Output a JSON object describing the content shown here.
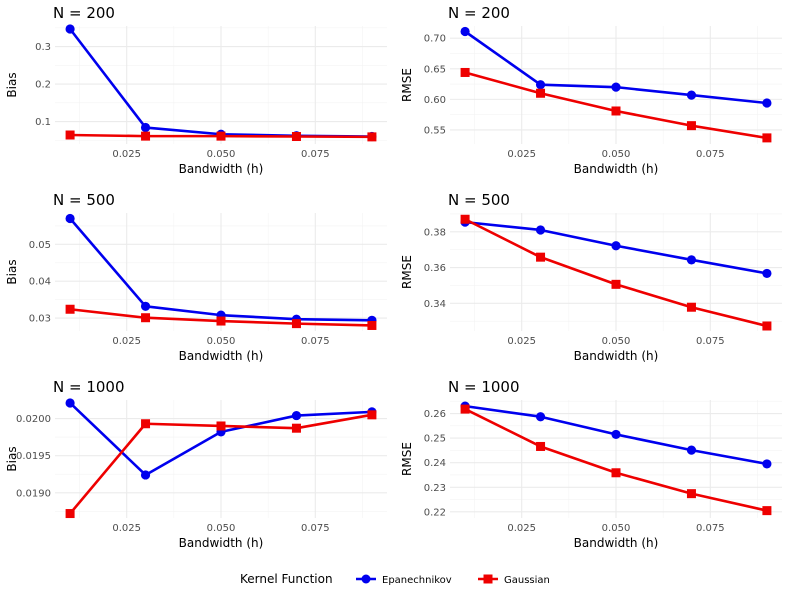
{
  "legend": {
    "title": "Kernel Function",
    "items": [
      {
        "label": "Epanechnikov",
        "color": "#0000ee",
        "marker": "circle"
      },
      {
        "label": "Gaussian",
        "color": "#ee0000",
        "marker": "square"
      }
    ]
  },
  "chart_data": [
    {
      "type": "line",
      "title": "N = 200",
      "xlabel": "Bandwidth (h)",
      "ylabel": "Bias",
      "x": [
        0.01,
        0.03,
        0.05,
        0.07,
        0.09
      ],
      "xlim": [
        0.006,
        0.094
      ],
      "ylim": [
        0.04,
        0.355
      ],
      "xticks": [
        0.025,
        0.05,
        0.075
      ],
      "xtick_labels": [
        "0.025",
        "0.050",
        "0.075"
      ],
      "yticks": [
        0.1,
        0.2,
        0.3
      ],
      "ytick_labels": [
        "0.1",
        "0.2",
        "0.3"
      ],
      "series": [
        {
          "name": "Epanechnikov",
          "values": [
            0.347,
            0.084,
            0.066,
            0.062,
            0.06
          ]
        },
        {
          "name": "Gaussian",
          "values": [
            0.064,
            0.061,
            0.061,
            0.06,
            0.059
          ]
        }
      ]
    },
    {
      "type": "line",
      "title": "N = 200",
      "xlabel": "Bandwidth (h)",
      "ylabel": "RMSE",
      "x": [
        0.01,
        0.03,
        0.05,
        0.07,
        0.09
      ],
      "xlim": [
        0.006,
        0.094
      ],
      "ylim": [
        0.527,
        0.72
      ],
      "xticks": [
        0.025,
        0.05,
        0.075
      ],
      "xtick_labels": [
        "0.025",
        "0.050",
        "0.075"
      ],
      "yticks": [
        0.55,
        0.6,
        0.65,
        0.7
      ],
      "ytick_labels": [
        "0.55",
        "0.60",
        "0.65",
        "0.70"
      ],
      "series": [
        {
          "name": "Epanechnikov",
          "values": [
            0.711,
            0.624,
            0.62,
            0.607,
            0.594
          ]
        },
        {
          "name": "Gaussian",
          "values": [
            0.644,
            0.61,
            0.581,
            0.557,
            0.537
          ]
        }
      ]
    },
    {
      "type": "line",
      "title": "N = 500",
      "xlabel": "Bandwidth (h)",
      "ylabel": "Bias",
      "x": [
        0.01,
        0.03,
        0.05,
        0.07,
        0.09
      ],
      "xlim": [
        0.006,
        0.094
      ],
      "ylim": [
        0.0265,
        0.0585
      ],
      "xticks": [
        0.025,
        0.05,
        0.075
      ],
      "xtick_labels": [
        "0.025",
        "0.050",
        "0.075"
      ],
      "yticks": [
        0.03,
        0.04,
        0.05
      ],
      "ytick_labels": [
        "0.03",
        "0.04",
        "0.05"
      ],
      "series": [
        {
          "name": "Epanechnikov",
          "values": [
            0.057,
            0.0332,
            0.0308,
            0.0297,
            0.0294
          ]
        },
        {
          "name": "Gaussian",
          "values": [
            0.0324,
            0.0301,
            0.0292,
            0.0285,
            0.028
          ]
        }
      ]
    },
    {
      "type": "line",
      "title": "N = 500",
      "xlabel": "Bandwidth (h)",
      "ylabel": "RMSE",
      "x": [
        0.01,
        0.03,
        0.05,
        0.07,
        0.09
      ],
      "xlim": [
        0.006,
        0.094
      ],
      "ylim": [
        0.3245,
        0.3905
      ],
      "xticks": [
        0.025,
        0.05,
        0.075
      ],
      "xtick_labels": [
        "0.025",
        "0.050",
        "0.075"
      ],
      "yticks": [
        0.34,
        0.36,
        0.38
      ],
      "ytick_labels": [
        "0.34",
        "0.36",
        "0.38"
      ],
      "series": [
        {
          "name": "Epanechnikov",
          "values": [
            0.3854,
            0.381,
            0.3722,
            0.3643,
            0.3567
          ]
        },
        {
          "name": "Gaussian",
          "values": [
            0.387,
            0.3658,
            0.3506,
            0.3378,
            0.3273
          ]
        }
      ]
    },
    {
      "type": "line",
      "title": "N = 1000",
      "xlabel": "Bandwidth (h)",
      "ylabel": "Bias",
      "x": [
        0.01,
        0.03,
        0.05,
        0.07,
        0.09
      ],
      "xlim": [
        0.006,
        0.094
      ],
      "ylim": [
        0.01866,
        0.02025
      ],
      "xticks": [
        0.025,
        0.05,
        0.075
      ],
      "xtick_labels": [
        "0.025",
        "0.050",
        "0.075"
      ],
      "yticks": [
        0.019,
        0.0195,
        0.02
      ],
      "ytick_labels": [
        "0.0190",
        "0.0195",
        "0.0200"
      ],
      "series": [
        {
          "name": "Epanechnikov",
          "values": [
            0.02021,
            0.01924,
            0.01982,
            0.02004,
            0.02009
          ]
        },
        {
          "name": "Gaussian",
          "values": [
            0.01872,
            0.01993,
            0.0199,
            0.01987,
            0.02005
          ]
        }
      ]
    },
    {
      "type": "line",
      "title": "N = 1000",
      "xlabel": "Bandwidth (h)",
      "ylabel": "RMSE",
      "x": [
        0.01,
        0.03,
        0.05,
        0.07,
        0.09
      ],
      "xlim": [
        0.006,
        0.094
      ],
      "ylim": [
        0.2175,
        0.2655
      ],
      "xticks": [
        0.025,
        0.05,
        0.075
      ],
      "xtick_labels": [
        "0.025",
        "0.050",
        "0.075"
      ],
      "yticks": [
        0.22,
        0.23,
        0.24,
        0.25,
        0.26
      ],
      "ytick_labels": [
        "0.22",
        "0.23",
        "0.24",
        "0.25",
        "0.26"
      ],
      "series": [
        {
          "name": "Epanechnikov",
          "values": [
            0.263,
            0.2587,
            0.2515,
            0.2451,
            0.2395
          ]
        },
        {
          "name": "Gaussian",
          "values": [
            0.2618,
            0.2466,
            0.2359,
            0.2274,
            0.2205
          ]
        }
      ]
    }
  ]
}
